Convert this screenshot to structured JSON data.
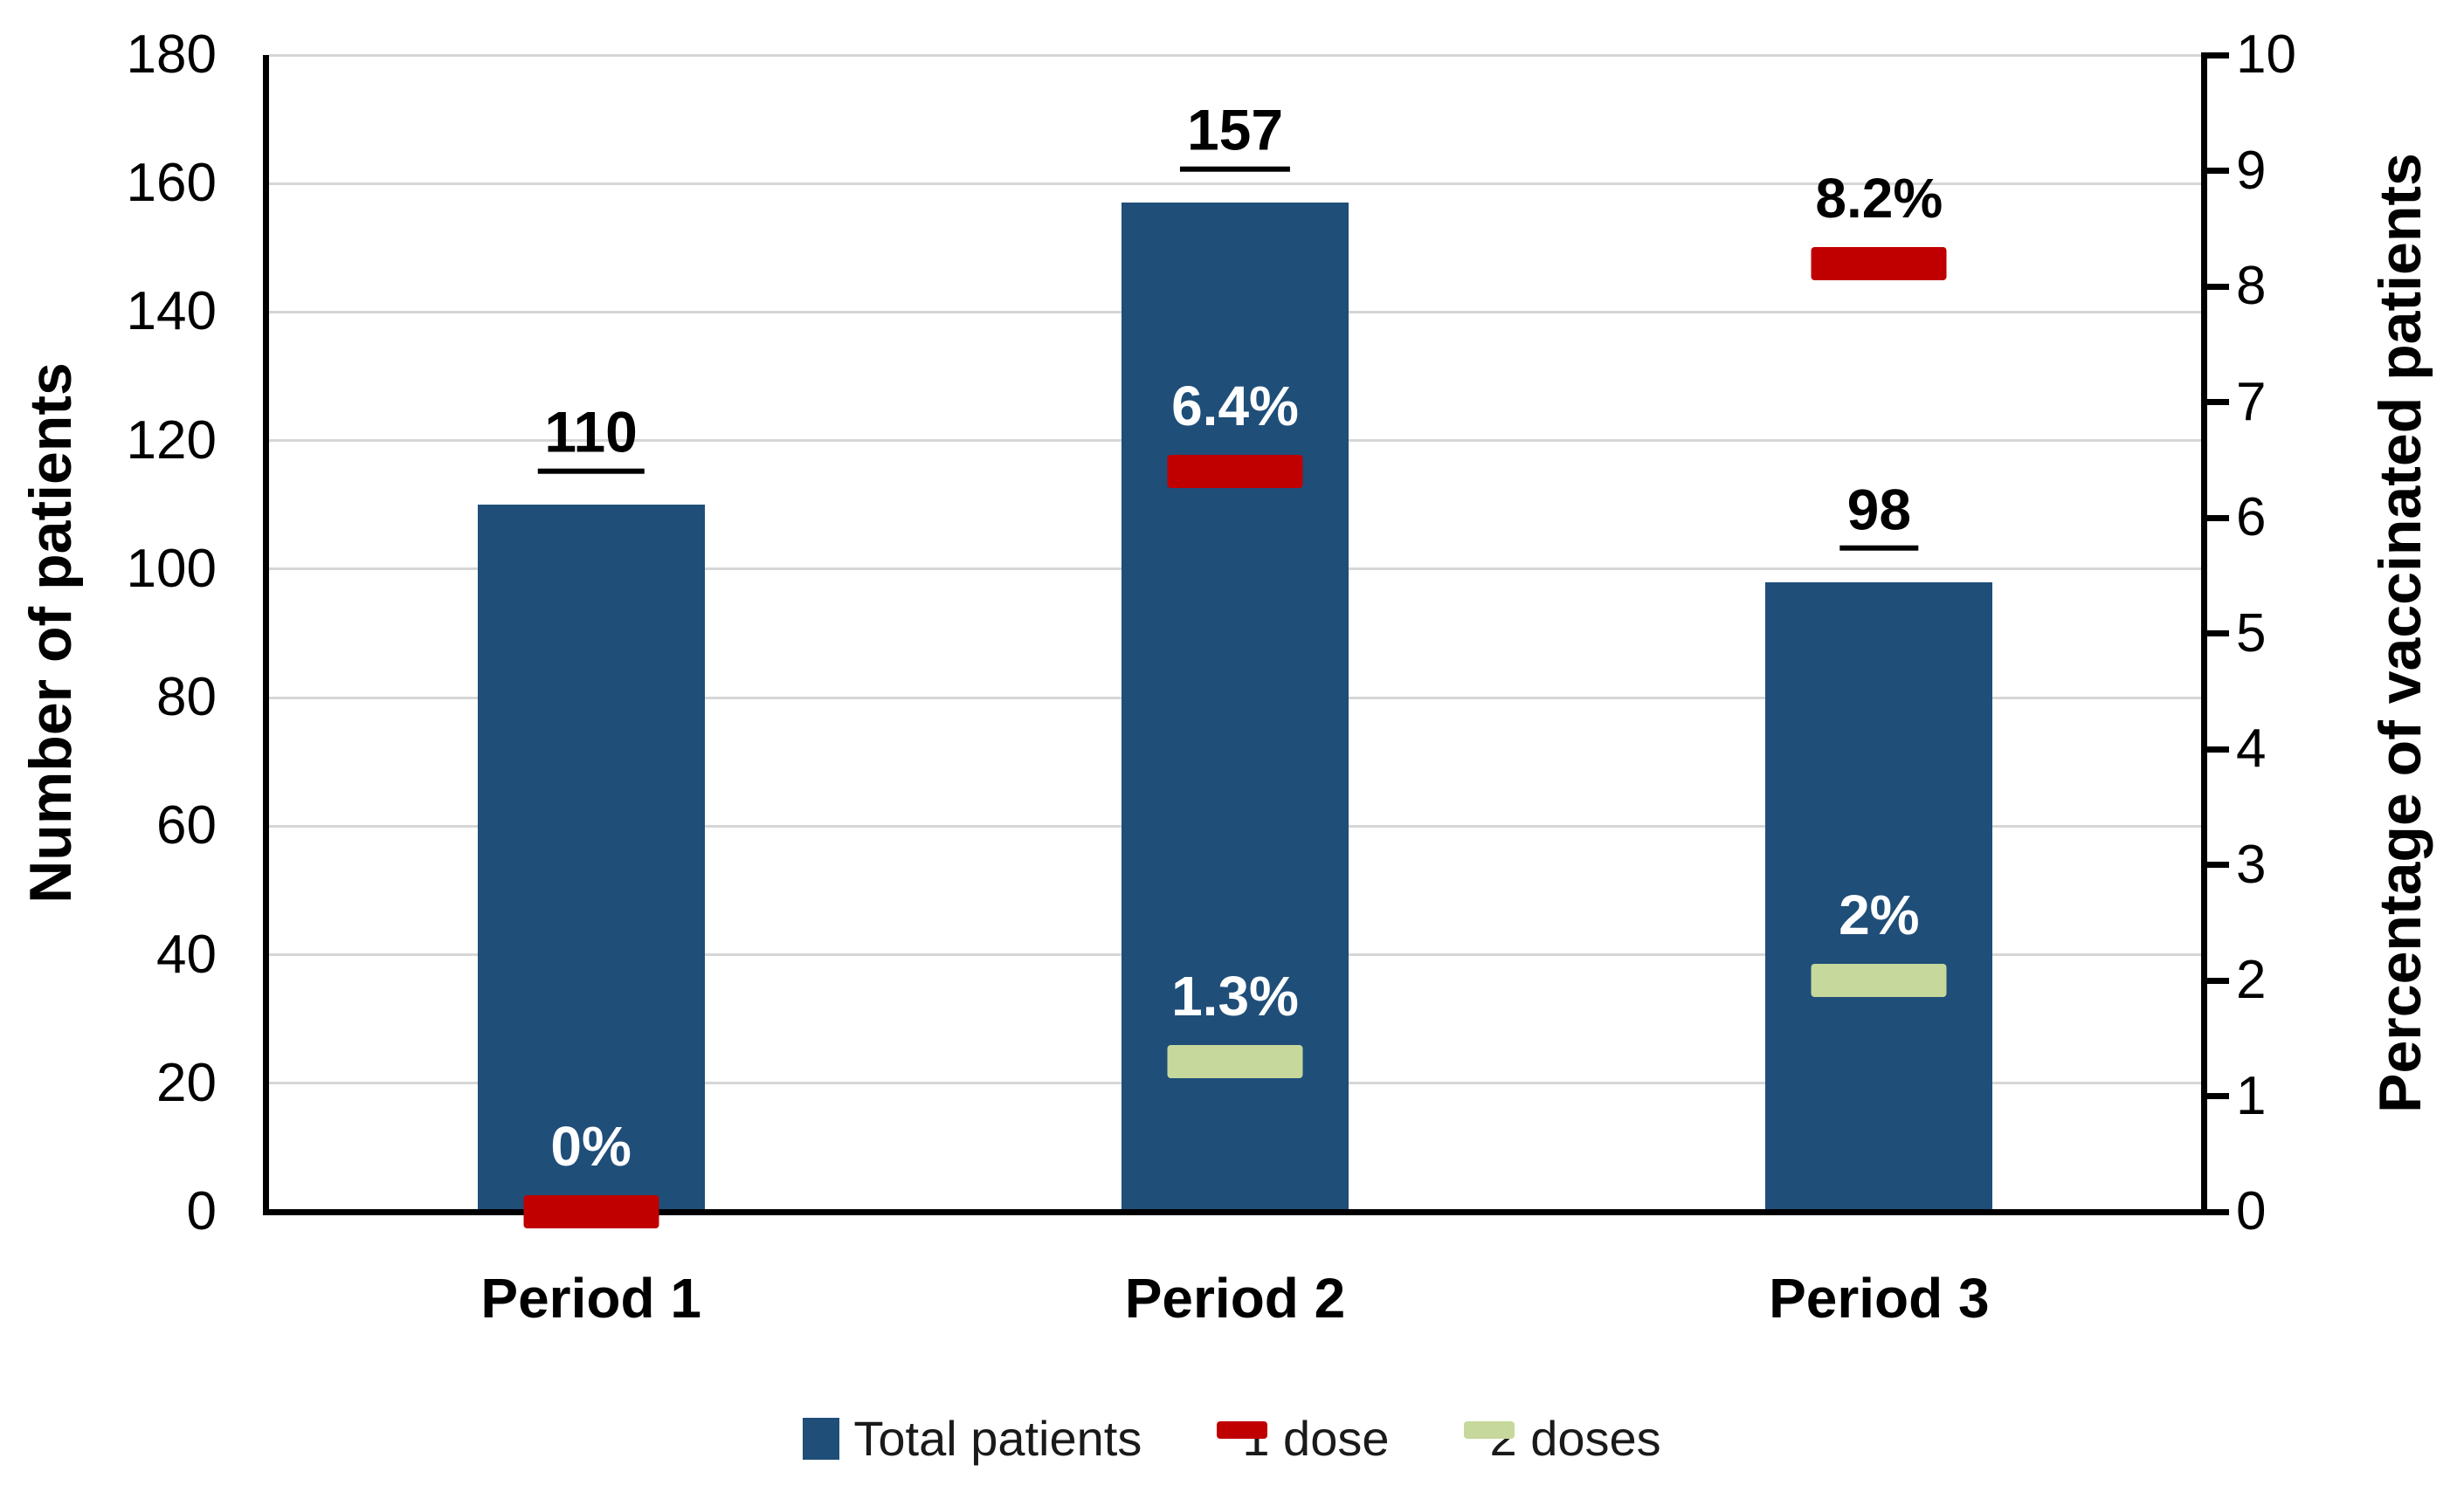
{
  "chart_data": {
    "type": "bar",
    "title": "",
    "categories": [
      "Period 1",
      "Period 2",
      "Period 3"
    ],
    "series": [
      {
        "name": "Total patients",
        "type": "bar",
        "axis": "left",
        "color": "#1F4E79",
        "values": [
          110,
          157,
          98
        ],
        "labels": [
          "110",
          "157",
          "98"
        ]
      },
      {
        "name": "1 dose",
        "type": "dash",
        "axis": "right",
        "color": "#C00000",
        "values": [
          0,
          6.4,
          8.2
        ],
        "labels": [
          "0%",
          "6.4%",
          "8.2%"
        ]
      },
      {
        "name": "2 doses",
        "type": "dash",
        "axis": "right",
        "color": "#C6D89B",
        "values": [
          null,
          1.3,
          2
        ],
        "labels": [
          null,
          "1.3%",
          "2%"
        ]
      }
    ],
    "left_axis": {
      "title": "Number of patients",
      "min": 0,
      "max": 180,
      "tick_step": 20,
      "ticks": [
        180,
        160,
        140,
        120,
        100,
        80,
        60,
        40,
        20,
        0
      ]
    },
    "right_axis": {
      "title": "Percentage of vaccinated patients",
      "min": 0,
      "max": 10,
      "tick_step": 1,
      "ticks": [
        10,
        9,
        8,
        7,
        6,
        5,
        4,
        3,
        2,
        1,
        0
      ]
    },
    "grid": true,
    "legend_position": "bottom",
    "legend": [
      {
        "label": "Total patients",
        "shape": "square",
        "color": "#1F4E79"
      },
      {
        "label": "1 dose",
        "shape": "dash",
        "color": "#C00000"
      },
      {
        "label": "2 doses",
        "shape": "dash",
        "color": "#C6D89B"
      }
    ]
  },
  "colors": {
    "bar_blue": "#1F4E79",
    "dash_red": "#C00000",
    "dash_green": "#C6D89B",
    "gridline": "#d6d6d6",
    "axis": "#000000",
    "label_inside_bar": "#ffffff",
    "label_outside_bar": "#000000"
  }
}
